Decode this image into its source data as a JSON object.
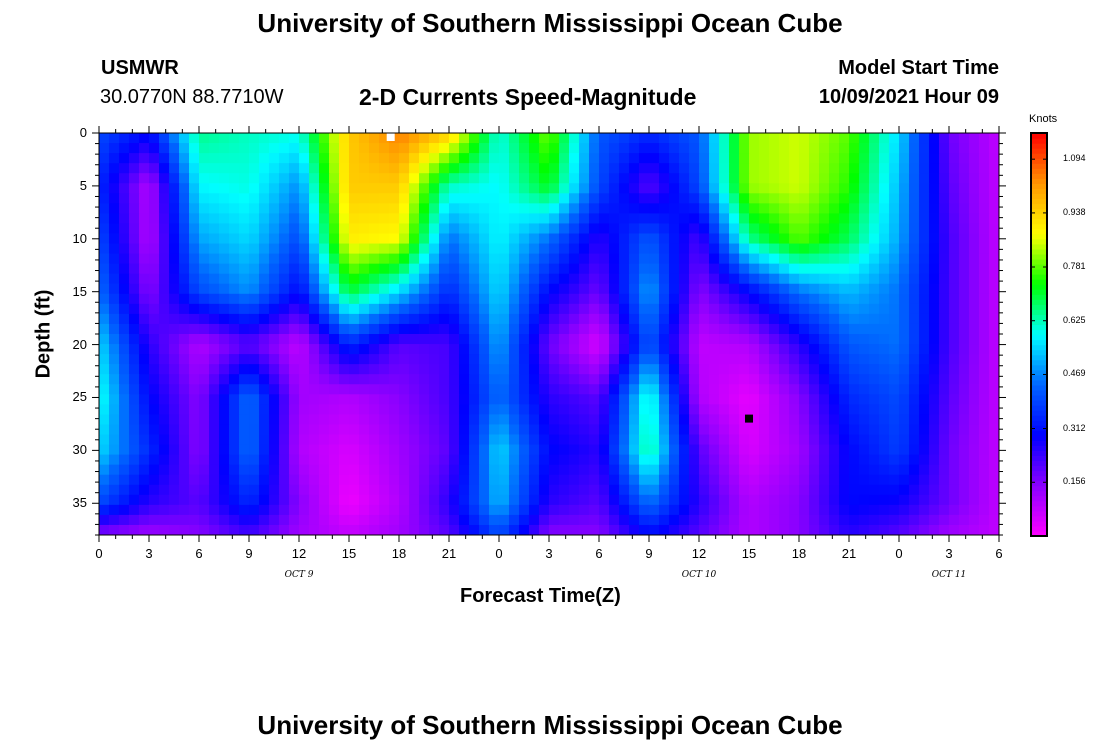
{
  "page": {
    "title_top": "University of Southern Mississippi Ocean Cube",
    "title_bottom": "University of Southern Mississippi Ocean Cube",
    "station": "USMWR",
    "coords": "30.0770N  88.7710W",
    "subtitle": "2-D Currents Speed-Magnitude",
    "model_label": "Model Start Time",
    "model_time": "10/09/2021 Hour 09"
  },
  "chart_data": {
    "type": "heatmap",
    "title": "2-D Currents Speed-Magnitude",
    "xlabel": "Forecast Time(Z)",
    "ylabel": "Depth (ft)",
    "x_tick_labels": [
      "0",
      "3",
      "6",
      "9",
      "12",
      "15",
      "18",
      "21",
      "0",
      "3",
      "6",
      "9",
      "12",
      "15",
      "18",
      "21",
      "0",
      "3",
      "6"
    ],
    "x_range_hours": [
      0,
      54
    ],
    "date_labels": [
      {
        "label": "OCT 9",
        "hour": 12
      },
      {
        "label": "OCT 10",
        "hour": 36
      },
      {
        "label": "OCT 11",
        "hour": 51
      }
    ],
    "y_tick_labels": [
      "0",
      "5",
      "10",
      "15",
      "20",
      "25",
      "30",
      "35"
    ],
    "y_range_ft": [
      0,
      38
    ],
    "y_inverted": true,
    "colorbar": {
      "unit": "Knots",
      "range": [
        0.0,
        1.17
      ],
      "tick_labels": [
        "1.094",
        "0.938",
        "0.781",
        "0.625",
        "0.469",
        "0.312",
        "0.156"
      ],
      "colors": [
        "#ff00ff",
        "#8c00ff",
        "#0000ff",
        "#0064ff",
        "#00ffff",
        "#00ff00",
        "#ffff00",
        "#ff9600",
        "#ff0000"
      ]
    },
    "speed_grid": {
      "hours": [
        0,
        3,
        6,
        9,
        12,
        15,
        18,
        21,
        24,
        27,
        30,
        33,
        36,
        39,
        42,
        45,
        48,
        51,
        54
      ],
      "depths_ft": [
        0,
        5,
        10,
        15,
        20,
        25,
        30,
        35,
        38
      ],
      "values_knots": [
        [
          0.4,
          0.3,
          0.65,
          0.62,
          0.6,
          0.95,
          1.05,
          0.95,
          0.6,
          0.8,
          0.42,
          0.35,
          0.42,
          0.82,
          0.85,
          0.78,
          0.55,
          0.18,
          0.08
        ],
        [
          0.35,
          0.1,
          0.58,
          0.6,
          0.48,
          0.95,
          0.95,
          0.62,
          0.58,
          0.72,
          0.4,
          0.2,
          0.4,
          0.82,
          0.85,
          0.75,
          0.52,
          0.2,
          0.08
        ],
        [
          0.4,
          0.1,
          0.5,
          0.55,
          0.4,
          0.9,
          0.88,
          0.45,
          0.58,
          0.45,
          0.25,
          0.42,
          0.22,
          0.65,
          0.78,
          0.68,
          0.5,
          0.22,
          0.08
        ],
        [
          0.45,
          0.15,
          0.4,
          0.48,
          0.3,
          0.7,
          0.55,
          0.35,
          0.55,
          0.3,
          0.18,
          0.5,
          0.15,
          0.3,
          0.45,
          0.52,
          0.45,
          0.22,
          0.08
        ],
        [
          0.55,
          0.25,
          0.1,
          0.2,
          0.08,
          0.35,
          0.2,
          0.22,
          0.5,
          0.18,
          0.05,
          0.42,
          0.08,
          0.1,
          0.25,
          0.42,
          0.45,
          0.22,
          0.08
        ],
        [
          0.6,
          0.3,
          0.15,
          0.45,
          0.12,
          0.1,
          0.15,
          0.22,
          0.45,
          0.25,
          0.2,
          0.62,
          0.1,
          0.03,
          0.15,
          0.35,
          0.4,
          0.2,
          0.08
        ],
        [
          0.55,
          0.35,
          0.15,
          0.45,
          0.1,
          0.05,
          0.12,
          0.2,
          0.55,
          0.3,
          0.25,
          0.65,
          0.2,
          0.05,
          0.12,
          0.3,
          0.38,
          0.18,
          0.08
        ],
        [
          0.4,
          0.25,
          0.2,
          0.35,
          0.15,
          0.02,
          0.1,
          0.25,
          0.52,
          0.25,
          0.2,
          0.45,
          0.25,
          0.1,
          0.15,
          0.3,
          0.28,
          0.18,
          0.08
        ],
        [
          0.15,
          0.12,
          0.15,
          0.22,
          0.12,
          0.08,
          0.12,
          0.2,
          0.4,
          0.15,
          0.15,
          0.3,
          0.2,
          0.1,
          0.15,
          0.25,
          0.2,
          0.12,
          0.08
        ]
      ]
    },
    "markers": [
      {
        "hour": 17.5,
        "depth_ft": 0,
        "color": "#ffffff"
      },
      {
        "hour": 39,
        "depth_ft": 27,
        "color": "#000000"
      }
    ]
  }
}
